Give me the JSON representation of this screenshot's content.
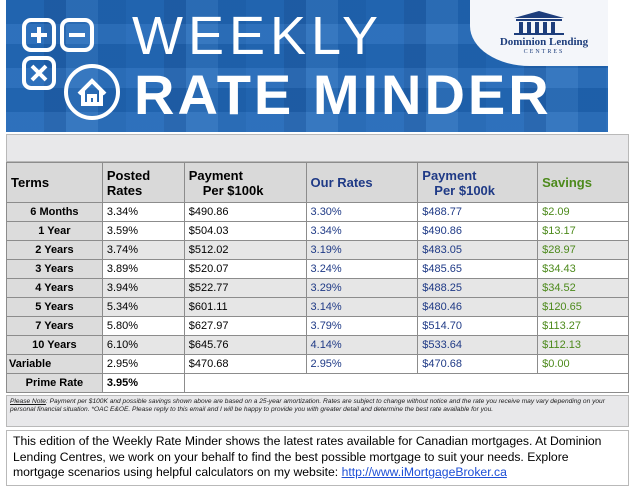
{
  "banner": {
    "title_line1": "WEEKLY",
    "title_line2": "RATE MINDER",
    "logo_name": "Dominion Lending",
    "logo_sub": "CENTRES",
    "icons": [
      "plus-icon",
      "minus-icon",
      "multiply-icon",
      "house-icon"
    ],
    "colors": {
      "banner_blue": "#1b63b3",
      "logo_navy": "#1e3e7c"
    }
  },
  "table": {
    "headers": {
      "terms": "Terms",
      "posted_l1": "Posted",
      "posted_l2": "Rates",
      "payment_a_l1": "Payment",
      "payment_a_l2": "Per $100k",
      "our_rates": "Our Rates",
      "payment_b_l1": "Payment",
      "payment_b_l2": "Per $100k",
      "savings": "Savings"
    },
    "rows": [
      {
        "term": "6 Months",
        "posted": "3.34%",
        "payment_posted": "$490.86",
        "our_rate": "3.30%",
        "payment_our": "$488.77",
        "savings": "$2.09"
      },
      {
        "term": "1 Year",
        "posted": "3.59%",
        "payment_posted": "$504.03",
        "our_rate": "3.34%",
        "payment_our": "$490.86",
        "savings": "$13.17"
      },
      {
        "term": "2 Years",
        "posted": "3.74%",
        "payment_posted": "$512.02",
        "our_rate": "3.19%",
        "payment_our": "$483.05",
        "savings": "$28.97"
      },
      {
        "term": "3 Years",
        "posted": "3.89%",
        "payment_posted": "$520.07",
        "our_rate": "3.24%",
        "payment_our": "$485.65",
        "savings": "$34.43"
      },
      {
        "term": "4 Years",
        "posted": "3.94%",
        "payment_posted": "$522.77",
        "our_rate": "3.29%",
        "payment_our": "$488.25",
        "savings": "$34.52"
      },
      {
        "term": "5 Years",
        "posted": "5.34%",
        "payment_posted": "$601.11",
        "our_rate": "3.14%",
        "payment_our": "$480.46",
        "savings": "$120.65"
      },
      {
        "term": "7 Years",
        "posted": "5.80%",
        "payment_posted": "$627.97",
        "our_rate": "3.79%",
        "payment_our": "$514.70",
        "savings": "$113.27"
      },
      {
        "term": "10 Years",
        "posted": "6.10%",
        "payment_posted": "$645.76",
        "our_rate": "4.14%",
        "payment_our": "$533.64",
        "savings": "$112.13"
      },
      {
        "term": "Variable",
        "posted": "2.95%",
        "payment_posted": "$470.68",
        "our_rate": "2.95%",
        "payment_our": "$470.68",
        "savings": "$0.00"
      }
    ],
    "prime": {
      "label": "Prime Rate",
      "value": "3.95%"
    },
    "colors": {
      "header_bg": "#d9d9d9",
      "our_blue": "#1f3a86",
      "savings_green": "#4d8a1c"
    }
  },
  "note": {
    "label": "Please Note",
    "text": ": Payment per $100K and possible savings shown above are based on a 25-year amortization. Rates are subject to change without notice and the rate you receive may vary depending on your personal financial situation. *OAC E&OE. Please reply to this email and I will be happy to provide you with greater detail and determine the best rate available for you."
  },
  "intro": {
    "text": "This edition of the Weekly Rate Minder shows the latest rates available for Canadian mortgages. At Dominion Lending Centres, we work on your behalf to find the best possible mortgage to suit your needs. Explore mortgage scenarios using helpful calculators on my website: ",
    "link": "http://www.iMortgageBroker.ca"
  }
}
